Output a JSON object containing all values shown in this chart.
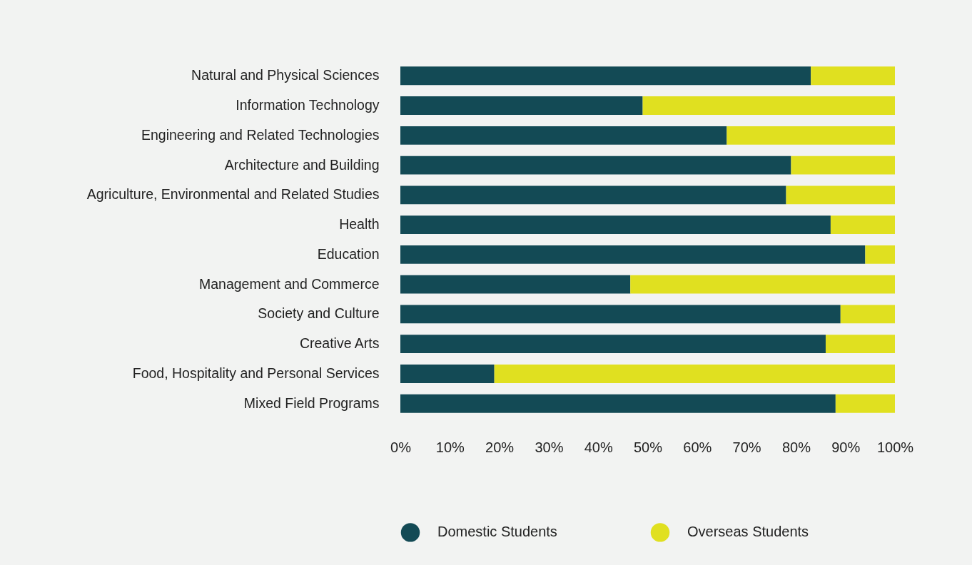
{
  "chart_data": {
    "type": "bar",
    "orientation": "horizontal",
    "stacked": true,
    "categories": [
      "Natural and Physical Sciences",
      "Information Technology",
      "Engineering and Related Technologies",
      "Architecture and Building",
      "Agriculture, Environmental and Related Studies",
      "Health",
      "Education",
      "Management and Commerce",
      "Society and Culture",
      "Creative Arts",
      "Food, Hospitality and Personal Services",
      "Mixed Field Programs"
    ],
    "series": [
      {
        "name": "Domestic Students",
        "color": "#134a55",
        "values": [
          83,
          49,
          66,
          79,
          78,
          87,
          94,
          46.5,
          89,
          86,
          19,
          88
        ]
      },
      {
        "name": "Overseas Students",
        "color": "#e0e020",
        "values": [
          17,
          51,
          34,
          21,
          22,
          13,
          6,
          53.5,
          11,
          14,
          81,
          12
        ]
      }
    ],
    "xlim": [
      0,
      100
    ],
    "xticks": [
      {
        "value": 0,
        "label": "0%"
      },
      {
        "value": 10,
        "label": "10%"
      },
      {
        "value": 20,
        "label": "20%"
      },
      {
        "value": 30,
        "label": "30%"
      },
      {
        "value": 40,
        "label": "40%"
      },
      {
        "value": 50,
        "label": "50%"
      },
      {
        "value": 60,
        "label": "60%"
      },
      {
        "value": 70,
        "label": "70%"
      },
      {
        "value": 80,
        "label": "80%"
      },
      {
        "value": 90,
        "label": "90%"
      },
      {
        "value": 100,
        "label": "100%"
      }
    ],
    "legend": "bottom"
  }
}
